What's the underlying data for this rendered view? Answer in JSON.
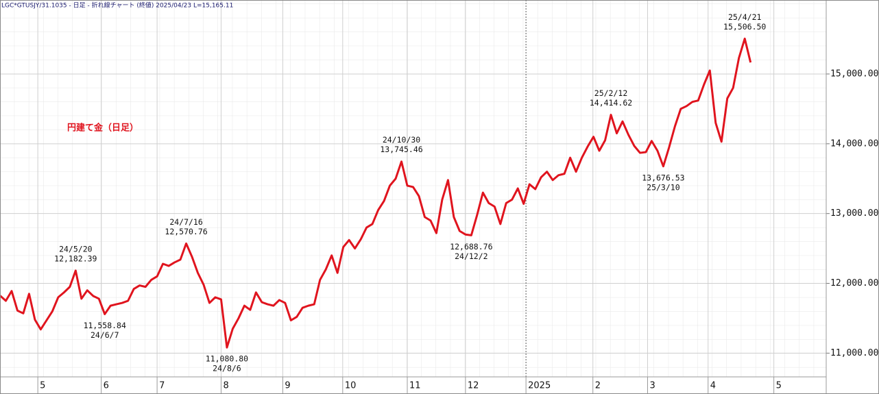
{
  "chart_data": {
    "type": "line",
    "subtitle": "LGC*GTUSJY/31.1035 - 日足 - 折れ線チャート (終値) 2025/04/23 L=15,165.11",
    "title": "円建て金（日足）",
    "xlim": [
      0,
      142
    ],
    "xticks": [
      {
        "value": 6.5,
        "label": "5"
      },
      {
        "value": 17.4,
        "label": "6"
      },
      {
        "value": 27,
        "label": "7"
      },
      {
        "value": 38,
        "label": "8"
      },
      {
        "value": 48.6,
        "label": "9"
      },
      {
        "value": 58.9,
        "label": "10"
      },
      {
        "value": 70,
        "label": "11"
      },
      {
        "value": 80,
        "label": "12"
      },
      {
        "value": 90.4,
        "label": "2025"
      },
      {
        "value": 101.9,
        "label": "2"
      },
      {
        "value": 111.3,
        "label": "3"
      },
      {
        "value": 121.7,
        "label": "4"
      },
      {
        "value": 133,
        "label": "5"
      }
    ],
    "ylim": [
      10660,
      16060
    ],
    "yticks": [
      {
        "value": 11000,
        "label": "11,000.00"
      },
      {
        "value": 12000,
        "label": "12,000.00"
      },
      {
        "value": 13000,
        "label": "13,000.00"
      },
      {
        "value": 14000,
        "label": "14,000.00"
      },
      {
        "value": 15000,
        "label": "15,000.00"
      }
    ],
    "grid": true,
    "series": [
      {
        "color": "#e0141e",
        "values": [
          11825,
          11750,
          11890,
          11610,
          11570,
          11850,
          11480,
          11340,
          11470,
          11600,
          11800,
          11870,
          11950,
          12182.39,
          11780,
          11900,
          11820,
          11780,
          11558.84,
          11680,
          11700,
          11720,
          11750,
          11920,
          11970,
          11950,
          12050,
          12100,
          12280,
          12250,
          12300,
          12340,
          12570.76,
          12380,
          12150,
          11980,
          11720,
          11800,
          11770,
          11080.8,
          11350,
          11500,
          11680,
          11620,
          11870,
          11730,
          11700,
          11680,
          11760,
          11720,
          11470,
          11520,
          11650,
          11680,
          11700,
          12050,
          12200,
          12400,
          12150,
          12520,
          12620,
          12500,
          12630,
          12800,
          12850,
          13050,
          13180,
          13400,
          13500,
          13745.46,
          13400,
          13380,
          13250,
          12950,
          12900,
          12720,
          13200,
          13480,
          12950,
          12750,
          12700,
          12688.76,
          12980,
          13300,
          13150,
          13100,
          12850,
          13150,
          13200,
          13360,
          13140,
          13420,
          13350,
          13520,
          13600,
          13480,
          13550,
          13570,
          13800,
          13600,
          13800,
          13960,
          14100,
          13900,
          14050,
          14414.62,
          14150,
          14320,
          14130,
          13970,
          13870,
          13880,
          14040,
          13900,
          13676.53,
          13950,
          14250,
          14500,
          14540,
          14600,
          14620,
          14850,
          15050,
          14300,
          14030,
          14650,
          14800,
          15230,
          15506.5,
          15165.11
        ],
        "value_labels": [
          null,
          null,
          null,
          null,
          null,
          null,
          null,
          null,
          null,
          null,
          null,
          null,
          null,
          "12,182.39",
          null,
          null,
          null,
          null,
          "11,558.84",
          null,
          null,
          null,
          null,
          null,
          null,
          null,
          null,
          null,
          null,
          null,
          null,
          null,
          "12,570.76",
          null,
          null,
          null,
          null,
          null,
          null,
          "11,080.80",
          null,
          null,
          null,
          null,
          null,
          null,
          null,
          null,
          null,
          null,
          null,
          null,
          null,
          null,
          null,
          null,
          null,
          null,
          null,
          null,
          null,
          null,
          null,
          null,
          null,
          null,
          null,
          null,
          null,
          "13,745.46",
          null,
          null,
          null,
          null,
          null,
          null,
          null,
          null,
          null,
          null,
          null,
          "12,688.76",
          null,
          null,
          null,
          null,
          null,
          null,
          null,
          null,
          null,
          null,
          null,
          null,
          null,
          null,
          null,
          null,
          null,
          null,
          null,
          null,
          null,
          null,
          null,
          "14,414.62",
          null,
          null,
          null,
          null,
          null,
          null,
          null,
          null,
          "13,676.53",
          null,
          null,
          null,
          null,
          null,
          null,
          null,
          null,
          null,
          null,
          null,
          null,
          null,
          "15,506.50",
          null
        ],
        "date_labels": [
          null,
          null,
          null,
          null,
          null,
          null,
          null,
          null,
          null,
          null,
          null,
          null,
          null,
          "24/5/20",
          null,
          null,
          null,
          null,
          "24/6/7",
          null,
          null,
          null,
          null,
          null,
          null,
          null,
          null,
          null,
          null,
          null,
          null,
          null,
          "24/7/16",
          null,
          null,
          null,
          null,
          null,
          null,
          "24/8/6",
          null,
          null,
          null,
          null,
          null,
          null,
          null,
          null,
          null,
          null,
          null,
          null,
          null,
          null,
          null,
          null,
          null,
          null,
          null,
          null,
          null,
          null,
          null,
          null,
          null,
          null,
          null,
          null,
          null,
          "24/10/30",
          null,
          null,
          null,
          null,
          null,
          null,
          null,
          null,
          null,
          null,
          null,
          "24/12/2",
          null,
          null,
          null,
          null,
          null,
          null,
          null,
          null,
          null,
          null,
          null,
          null,
          null,
          null,
          null,
          null,
          null,
          null,
          null,
          null,
          null,
          null,
          null,
          "25/2/12",
          null,
          null,
          null,
          null,
          null,
          null,
          null,
          null,
          "25/3/10",
          null,
          null,
          null,
          null,
          null,
          null,
          null,
          null,
          null,
          null,
          null,
          null,
          null,
          "25/4/21",
          null
        ]
      }
    ]
  }
}
